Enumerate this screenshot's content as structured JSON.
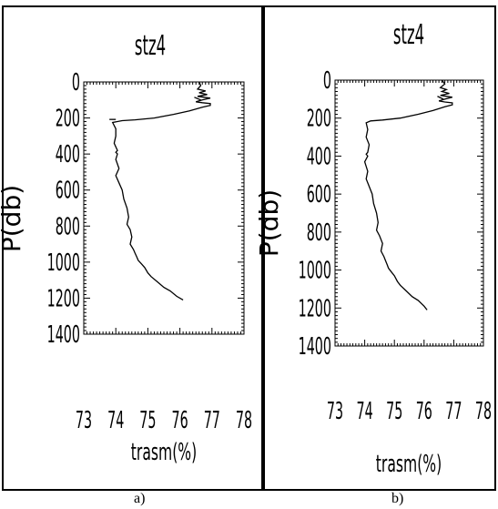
{
  "panels": [
    {
      "letter": "a)"
    },
    {
      "letter": "b)"
    }
  ],
  "chart_data": [
    {
      "type": "line",
      "title": "stz4",
      "xlabel": "trasm(%)",
      "ylabel": "P(db)",
      "xlim": [
        73,
        78
      ],
      "ylim": [
        1400,
        0
      ],
      "x_ticks": [
        "73",
        "74",
        "75",
        "76",
        "77",
        "78"
      ],
      "y_ticks": [
        "0",
        "200",
        "400",
        "600",
        "800",
        "1000",
        "1200",
        "1400"
      ],
      "grid": false,
      "x": [
        76.6,
        76.65,
        76.55,
        76.8,
        76.6,
        76.85,
        76.55,
        76.95,
        76.7,
        76.5,
        76.7,
        76.95,
        76.95,
        76.7,
        76.3,
        75.8,
        75.2,
        74.6,
        74.2,
        73.9,
        74.0,
        74.0,
        73.95,
        74.05,
        74.0,
        74.05,
        74.0,
        74.1,
        74.0,
        74.1,
        74.2,
        74.25,
        74.35,
        74.4,
        74.35,
        74.45,
        74.5,
        74.45,
        74.55,
        74.6,
        74.65,
        74.7,
        74.8,
        74.9,
        75.0,
        75.1,
        75.3,
        75.5,
        75.7,
        75.9,
        76.1
      ],
      "y": [
        0,
        20,
        40,
        50,
        60,
        70,
        80,
        90,
        100,
        110,
        115,
        120,
        130,
        140,
        160,
        180,
        200,
        210,
        215,
        225,
        260,
        300,
        340,
        380,
        390,
        400,
        430,
        480,
        520,
        560,
        600,
        650,
        700,
        750,
        790,
        820,
        860,
        900,
        930,
        950,
        970,
        990,
        1010,
        1030,
        1060,
        1080,
        1110,
        1140,
        1160,
        1190,
        1210
      ],
      "extras": [
        {
          "from": [
            73.8,
            208
          ],
          "to": [
            74.0,
            208
          ]
        },
        {
          "from": [
            76.45,
            85
          ],
          "to": [
            76.65,
            100
          ]
        }
      ]
    },
    {
      "type": "line",
      "title": "stz4",
      "xlabel": "trasm(%)",
      "ylabel": "P(db)",
      "xlim": [
        73,
        78
      ],
      "ylim": [
        1400,
        0
      ],
      "x_ticks": [
        "73",
        "74",
        "75",
        "76",
        "77",
        "78"
      ],
      "y_ticks": [
        "0",
        "200",
        "400",
        "600",
        "800",
        "1000",
        "1200",
        "1400"
      ],
      "grid": false,
      "x": [
        76.6,
        76.7,
        76.55,
        76.75,
        76.6,
        76.85,
        76.55,
        76.95,
        76.7,
        76.5,
        76.7,
        76.95,
        76.95,
        76.7,
        76.3,
        75.8,
        75.2,
        74.6,
        74.2,
        74.05,
        74.1,
        74.05,
        74.15,
        74.1,
        74.05,
        74.1,
        74.0,
        74.1,
        74.05,
        74.15,
        74.25,
        74.3,
        74.4,
        74.45,
        74.4,
        74.5,
        74.6,
        74.55,
        74.65,
        74.7,
        74.75,
        74.8,
        74.9,
        75.0,
        75.1,
        75.2,
        75.4,
        75.6,
        75.8,
        76.0,
        76.1
      ],
      "y": [
        0,
        20,
        40,
        50,
        60,
        70,
        80,
        90,
        100,
        110,
        115,
        120,
        130,
        140,
        160,
        180,
        200,
        210,
        215,
        225,
        260,
        300,
        340,
        380,
        390,
        400,
        430,
        480,
        520,
        560,
        600,
        650,
        700,
        750,
        790,
        820,
        860,
        900,
        930,
        950,
        970,
        990,
        1010,
        1030,
        1060,
        1080,
        1110,
        1140,
        1160,
        1190,
        1210
      ],
      "extras": [
        {
          "from": [
            76.45,
            85
          ],
          "to": [
            76.65,
            100
          ]
        }
      ]
    }
  ]
}
